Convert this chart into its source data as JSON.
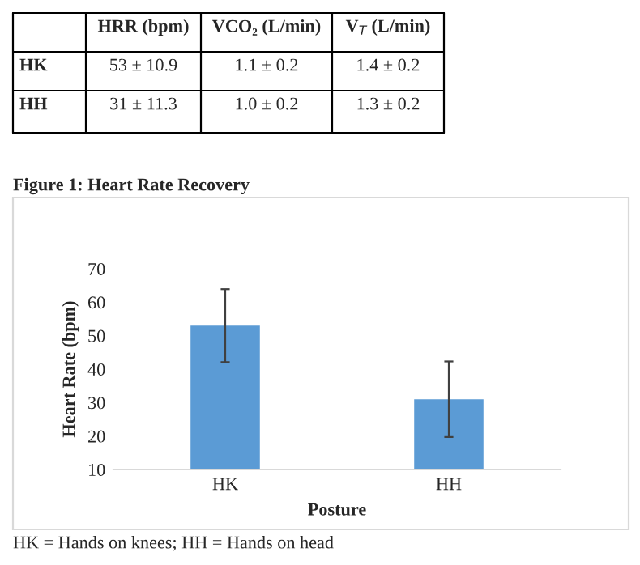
{
  "chart_data": {
    "type": "bar",
    "title": "Figure 1: Heart Rate Recovery",
    "xlabel": "Posture",
    "ylabel": "Heart Rate (bpm)",
    "categories": [
      "HK",
      "HH"
    ],
    "values": [
      53,
      31
    ],
    "errors": [
      10.9,
      11.3
    ],
    "color": "#5b9bd5",
    "ylim": [
      10,
      70
    ],
    "yticks": [
      10,
      20,
      30,
      40,
      50,
      60,
      70
    ],
    "grid": false,
    "annotations": [
      "HRR (bpm)",
      "VCO₂ (L/min)",
      "V$_{T}$ (L/min)",
      "HK",
      "53 ± 10.9",
      "1.1 ± 0.2",
      "1.4 ± 0.2",
      "HH",
      "31 ± 11.3",
      "1.0 ± 0.2",
      "1.3 ± 0.2",
      "HK = Hands on knees; HH = Hands on head"
    ]
  }
}
